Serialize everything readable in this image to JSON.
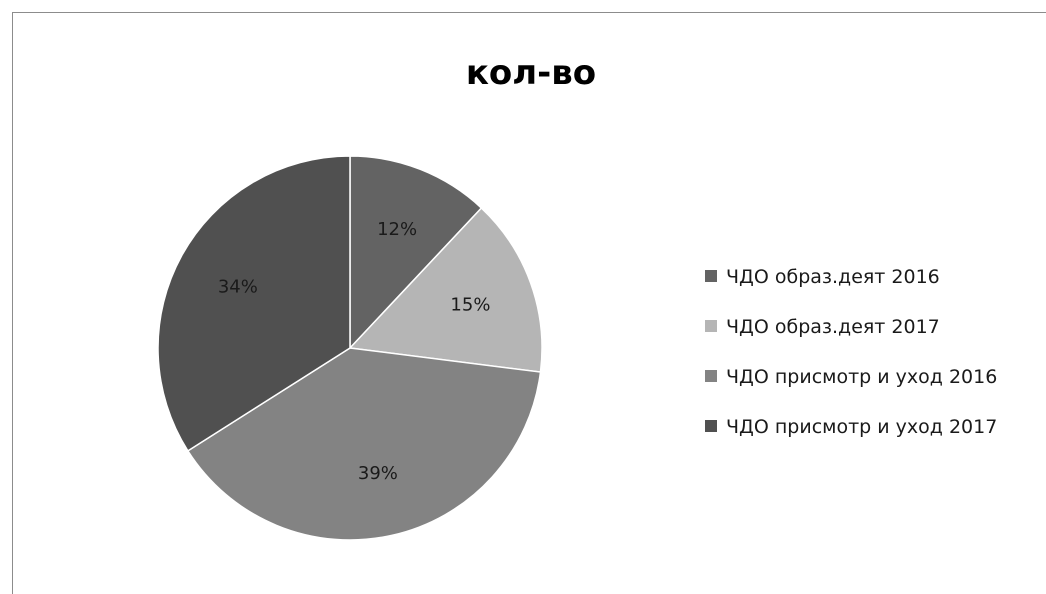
{
  "chart_data": {
    "type": "pie",
    "title": "кол-во",
    "categories": [
      "ЧДО образ.деят 2016",
      "ЧДО образ.деят 2017",
      "ЧДО присмотр и уход 2016",
      "ЧДО присмотр и уход 2017"
    ],
    "values": [
      12,
      15,
      39,
      34
    ],
    "data_labels": [
      "12%",
      "15%",
      "39%",
      "34%"
    ],
    "colors": [
      "#636363",
      "#b5b5b5",
      "#838383",
      "#505050"
    ],
    "legend": "right"
  }
}
